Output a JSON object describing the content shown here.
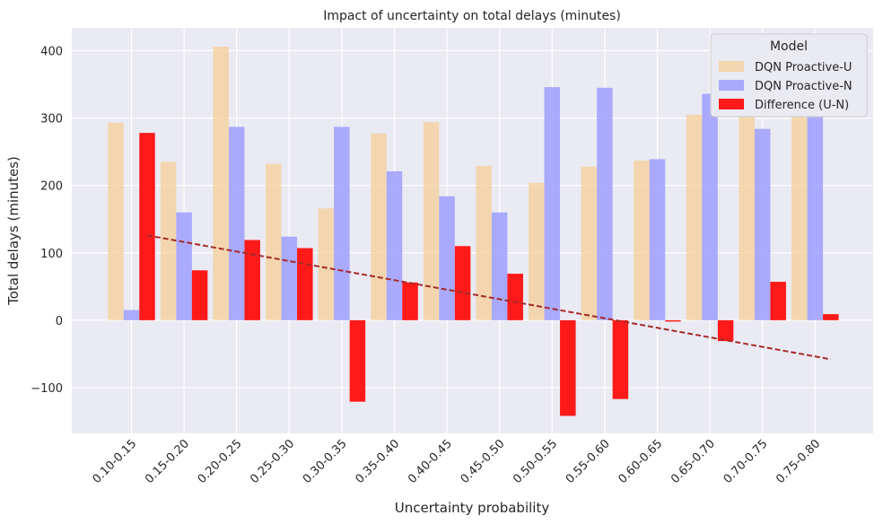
{
  "chart_data": {
    "type": "bar",
    "title": "Impact of uncertainty on total delays (minutes)",
    "xlabel": "Uncertainty probability",
    "ylabel": "Total delays (minutes)",
    "categories": [
      "0.10-0.15",
      "0.15-0.20",
      "0.20-0.25",
      "0.25-0.30",
      "0.30-0.35",
      "0.35-0.40",
      "0.40-0.45",
      "0.45-0.50",
      "0.50-0.55",
      "0.55-0.60",
      "0.60-0.65",
      "0.65-0.70",
      "0.70-0.75",
      "0.75-0.80"
    ],
    "series": [
      {
        "name": "DQN Proactive-U",
        "color": "#f5cf98",
        "opacity": 0.75,
        "values": [
          293,
          235,
          406,
          232,
          166,
          277,
          294,
          229,
          204,
          228,
          237,
          305,
          348,
          352
        ]
      },
      {
        "name": "DQN Proactive-N",
        "color": "#9999ff",
        "opacity": 0.8,
        "values": [
          15,
          160,
          287,
          124,
          287,
          221,
          184,
          160,
          346,
          345,
          239,
          336,
          284,
          341
        ]
      },
      {
        "name": "Difference (U-N)",
        "color": "#ff1a1a",
        "opacity": 1,
        "values": [
          278,
          74,
          119,
          107,
          -121,
          56,
          110,
          69,
          -142,
          -117,
          -2,
          -31,
          57,
          9
        ]
      }
    ],
    "trendline": {
      "style": "dashed",
      "color": "#a52a2a",
      "x_start": "0.10-0.15",
      "x_end": "0.75-0.80",
      "y_start": 126,
      "y_end": -58
    },
    "ylim": [
      -168,
      434
    ],
    "yticks": [
      -100,
      0,
      100,
      200,
      300,
      400
    ],
    "grid": true,
    "legend": {
      "title": "Model",
      "position": "top-right"
    }
  }
}
